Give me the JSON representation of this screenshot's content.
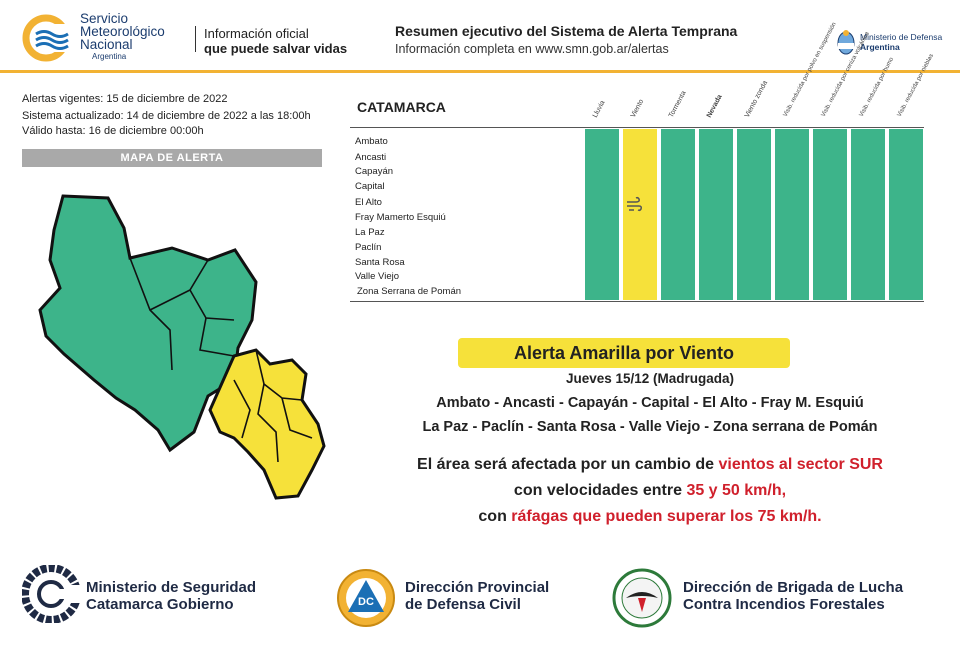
{
  "header": {
    "org_line1": "Servicio",
    "org_line2": "Meteorológico",
    "org_line3": "Nacional",
    "org_country": "Argentina",
    "tagline_line1": "Información oficial",
    "tagline_line2": "que puede salvar vidas",
    "summary_title": "Resumen ejecutivo del Sistema de Alerta Temprana",
    "summary_sub": "Información completa en www.smn.gob.ar/alertas",
    "ministry_line1": "Ministerio de Defensa",
    "ministry_line2": "Argentina"
  },
  "info": {
    "vigentes": "Alertas vigentes: 15 de diciembre de 2022",
    "actualizado": "Sistema actualizado: 14 de diciembre de 2022 a las 18:00h",
    "valido": "Válido hasta: 16 de diciembre 00:00h",
    "map_label": "MAPA DE ALERTA"
  },
  "table": {
    "province": "CATAMARCA",
    "columns": [
      "Lluvia",
      "Viento",
      "Tormenta",
      "Nevada",
      "Viento zonda",
      "Visib. reducida por polvo en suspensión",
      "Visib. reducida por ceniza volcánica",
      "Visib. reducida por humo",
      "Visib. reducida por nieblas"
    ],
    "column_colors": [
      "#3db48a",
      "#f6e13a",
      "#3db48a",
      "#3db48a",
      "#3db48a",
      "#3db48a",
      "#3db48a",
      "#3db48a",
      "#3db48a"
    ],
    "locations": [
      "Ambato",
      "Ancasti",
      "Capayán",
      "Capital",
      "El Alto",
      "Fray Mamerto Esquiú",
      "La Paz",
      "Paclín",
      "Santa Rosa",
      "Valle Viejo",
      "Zona Serrana de Pomán"
    ]
  },
  "alert": {
    "title": "Alerta Amarilla por Viento",
    "date": "Jueves 15/12 (Madrugada)",
    "zones_line1": "Ambato - Ancasti - Capayán - Capital - El Alto - Fray M. Esquiú",
    "zones_line2": "La Paz - Paclín - Santa Rosa - Valle Viejo - Zona serrana de Pomán",
    "desc1_a": "El área será afectada por un cambio de ",
    "desc1_b": "vientos al sector SUR",
    "desc2_a": "con velocidades entre ",
    "desc2_b": "35 y 50 km/h,",
    "desc3_a": "con ",
    "desc3_b": "ráfagas que pueden superar los 75 km/h."
  },
  "footer": {
    "seguridad_line1": "Ministerio de Seguridad",
    "seguridad_line2": "Catamarca Gobierno",
    "civil_line1": "Dirección Provincial",
    "civil_line2": "de Defensa Civil",
    "civil_badge": "DC",
    "brigada_line1": "Dirección de Brigada de Lucha",
    "brigada_line2": "Contra Incendios Forestales"
  },
  "colors": {
    "green": "#3db48a",
    "yellow": "#f6e13a",
    "brand_blue": "#1b3c6e",
    "accent_orange": "#f2b233",
    "red": "#d0202c"
  }
}
